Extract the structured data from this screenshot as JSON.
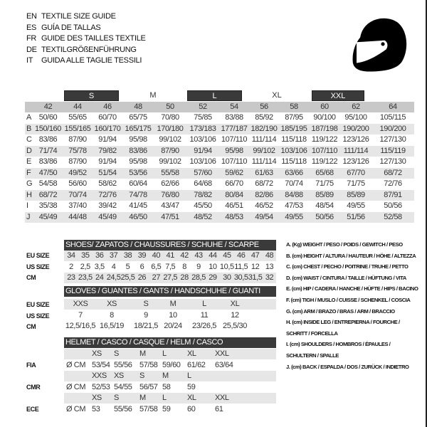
{
  "titles": [
    {
      "code": "EN",
      "text": "TEXTILE SIZE GUIDE"
    },
    {
      "code": "ES",
      "text": "GUÍA DE TALLAS"
    },
    {
      "code": "FR",
      "text": "GUIDE DES TAILLES TEXTILE"
    },
    {
      "code": "DE",
      "text": "TEXTILGRÖßENFÜHRUNG"
    },
    {
      "code": "IT",
      "text": "GUIDA ALLE TAGLIE TESSILI"
    }
  ],
  "logo_icon": "helmet-icon",
  "textile": {
    "size_groups": [
      "S",
      "M",
      "L",
      "XL",
      "XXL"
    ],
    "columns": [
      "42",
      "44",
      "46",
      "48",
      "50",
      "52",
      "54",
      "56",
      "58",
      "60",
      "62",
      "64"
    ],
    "rows": [
      {
        "label": "A",
        "values": [
          "50/60",
          "55/65",
          "60/70",
          "65/75",
          "70/80",
          "75/85",
          "83/88",
          "85/92",
          "87/95",
          "90/100",
          "95/100",
          "105/115"
        ]
      },
      {
        "label": "B",
        "values": [
          "150/160",
          "155/165",
          "160/170",
          "165/175",
          "170/180",
          "173/183",
          "177/187",
          "182/190",
          "185/195",
          "187/198",
          "190/200",
          "190/200"
        ]
      },
      {
        "label": "C",
        "values": [
          "83/86",
          "87/90",
          "91/94",
          "95/98",
          "99/102",
          "103/106",
          "107/110",
          "111/114",
          "115/118",
          "119/122",
          "123/126",
          "127/130"
        ]
      },
      {
        "label": "D",
        "values": [
          "71/74",
          "75/78",
          "79/82",
          "83/86",
          "87/90",
          "91/94",
          "95/98",
          "99/102",
          "103/106",
          "107/110",
          "111/114",
          "115/119"
        ]
      },
      {
        "label": "E",
        "values": [
          "83/86",
          "87/90",
          "91/94",
          "95/98",
          "99/102",
          "103/106",
          "107/110",
          "111/114",
          "115/118",
          "119/122",
          "123/126",
          "127/130"
        ]
      },
      {
        "label": "F",
        "values": [
          "47/50",
          "49/52",
          "51/54",
          "53/56",
          "55/58",
          "57/60",
          "59/62",
          "61/63",
          "63/66",
          "65/68",
          "67/70",
          "68/72"
        ]
      },
      {
        "label": "G",
        "values": [
          "54/58",
          "56/60",
          "58/62",
          "60/64",
          "62/66",
          "64/68",
          "66/70",
          "68/72",
          "70/74",
          "71/75",
          "71/75",
          "72/76"
        ]
      },
      {
        "label": "H",
        "values": [
          "68/72",
          "70/74",
          "72/76",
          "74/78",
          "76/80",
          "78/82",
          "80/84",
          "82/86",
          "84/88",
          "85/89",
          "85/89",
          "87/91"
        ]
      },
      {
        "label": "I",
        "values": [
          "35/38",
          "37/40",
          "39/42",
          "41/45",
          "43/47",
          "45/50",
          "46/51",
          "46/52",
          "47/53",
          "48/54",
          "49/55",
          "50/56"
        ]
      },
      {
        "label": "J",
        "values": [
          "45/49",
          "44/48",
          "45/49",
          "46/50",
          "47/51",
          "48/52",
          "48/53",
          "49/54",
          "49/55",
          "50/56",
          "51/56",
          "52/58"
        ]
      }
    ]
  },
  "shoes": {
    "title": "SHOES/ ZAPATOS / CHAUSSURES / SCHUHE / SCARPE",
    "rows": [
      {
        "label": "EU SIZE",
        "values": [
          "34",
          "35",
          "36",
          "37",
          "38",
          "39",
          "40",
          "41",
          "42",
          "43",
          "44",
          "45",
          "46",
          "47",
          "48"
        ]
      },
      {
        "label": "US SIZE",
        "values": [
          "2",
          "2,5",
          "3,5",
          "4",
          "5",
          "6",
          "6,5",
          "7,5",
          "8",
          "9",
          "10",
          "10,5",
          "11,5",
          "12",
          "13"
        ]
      },
      {
        "label": "CM",
        "values": [
          "23",
          "23,5",
          "24",
          "24,5",
          "25,5",
          "26",
          "27",
          "27,5",
          "28",
          "28,5",
          "29",
          "30",
          "30,5",
          "31,5",
          "32"
        ]
      }
    ]
  },
  "gloves": {
    "title": "GLOVES / GUANTES / GANTS / HANDSCHUHE / GUANTI",
    "rows": [
      {
        "label": "EU SIZE",
        "values": [
          "XXS",
          "XS",
          "S",
          "M",
          "L",
          "XL"
        ]
      },
      {
        "label": "US SIZE",
        "values": [
          "7",
          "8",
          "9",
          "10",
          "11",
          "12"
        ]
      },
      {
        "label": "CM",
        "values": [
          "12,5/16,5",
          "16,5/19",
          "18/21,5",
          "20/24",
          "23/26,5",
          "25,5/30"
        ]
      }
    ]
  },
  "helmet": {
    "title": "HELMET / CASCO / CASQUE / HELM / CASCO",
    "unit": "Ø CM",
    "standards": [
      {
        "label": "FIA",
        "sizes": [
          "XS",
          "S",
          "M",
          "L",
          "XL",
          "XXL"
        ],
        "values": [
          "53/54",
          "55/56",
          "57/58",
          "59/60",
          "61/62",
          "63/64"
        ]
      },
      {
        "label": "CMR",
        "sizes": [
          "XXS",
          "XS",
          "S",
          "M",
          "L"
        ],
        "values": [
          "52/53",
          "54/55",
          "56/57",
          "58",
          "59"
        ]
      },
      {
        "label": "ECE",
        "sizes": [
          "XS",
          "S",
          "M",
          "L",
          "XL",
          "XXL"
        ],
        "values": [
          "53",
          "55/56",
          "57/58",
          "59",
          "60",
          "61"
        ]
      }
    ]
  },
  "legend": [
    "A. (Kg) WEIGHT / PESO / POIDS / GEWITCH / PESO",
    "B. (cm) HEIGHT / ALTURA / HAUTEUR / HÖHE / ALTEZZA",
    "C. (cm) CHEST / PECHO / POITRINE / TRUHE / PETTO",
    "D. (cm) WAIST / CINTURA / TAILLE / HÜFTUNG / VITA",
    "E. (cm) HIP / CADERA / HANCHE / HÜFTE / HIPS /  BACINO",
    "F.  (cm) TIGH / MUSLO / CUISSE / SCHENKEL / COSCIA",
    "G. (cm) ARM  / BRAZO / BRAS / ARM / BRACCIO",
    "H. (cm) INSIDE LEG / ENTREPIERNA / FOURCHE /",
    "SCHRITT / FORCELLA",
    "I.  (cm) SHOULDERS / HOMBROS / ÉPAULES /",
    "SCHULTERN / SPALLE",
    "J. (cm) BACK / ESPALDA / DOS / ZURÜCK / INDIETRO"
  ]
}
